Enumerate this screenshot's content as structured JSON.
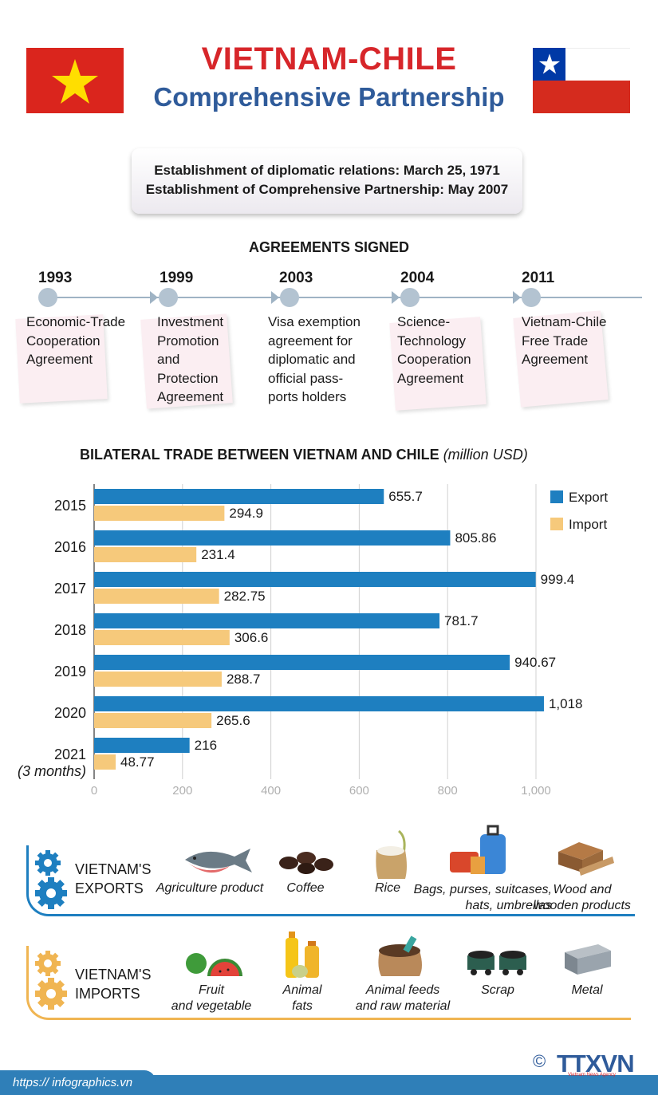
{
  "header": {
    "title": "VIETNAM-CHILE",
    "subtitle": "Comprehensive Partnership"
  },
  "info": {
    "line1": "Establishment of diplomatic relations: March 25, 1971",
    "line2": "Establishment of Comprehensive Partnership: May 2007"
  },
  "agreements": {
    "title": "AGREEMENTS SIGNED",
    "items": [
      {
        "year": "1993",
        "lines": [
          "Economic-Trade",
          "Cooperation",
          "Agreement"
        ]
      },
      {
        "year": "1999",
        "lines": [
          "Investment",
          "Promotion",
          "and",
          "Protection",
          "Agreement"
        ]
      },
      {
        "year": "2003",
        "lines": [
          "Visa exemption",
          "agreement for",
          "diplomatic and",
          "official pass-",
          "ports holders"
        ]
      },
      {
        "year": "2004",
        "lines": [
          "Science-",
          "Technology",
          "Cooperation",
          "Agreement"
        ]
      },
      {
        "year": "2011",
        "lines": [
          "Vietnam-Chile",
          "Free Trade",
          "Agreement"
        ]
      }
    ]
  },
  "chart_data": {
    "type": "bar",
    "orientation": "horizontal",
    "title": "BILATERAL TRADE BETWEEN VIETNAM AND CHILE",
    "unit": "(million USD)",
    "categories": [
      "2015",
      "2016",
      "2017",
      "2018",
      "2019",
      "2020",
      "2021"
    ],
    "category_notes": [
      "",
      "",
      "",
      "",
      "",
      "",
      "(3 months)"
    ],
    "series": [
      {
        "name": "Export",
        "color": "#1e7fc0",
        "values": [
          655.7,
          805.86,
          999.4,
          781.7,
          940.67,
          1018,
          216
        ],
        "labels": [
          "655.7",
          "805.86",
          "999.4",
          "781.7",
          "940.67",
          "1,018",
          "216"
        ]
      },
      {
        "name": "Import",
        "color": "#f6c97b",
        "values": [
          294.9,
          231.4,
          282.75,
          306.6,
          288.7,
          265.6,
          48.77
        ],
        "labels": [
          "294.9",
          "231.4",
          "282.75",
          "306.6",
          "288.7",
          "265.6",
          "48.77"
        ]
      }
    ],
    "xlim": [
      0,
      1000
    ],
    "xticks": [
      0,
      200,
      400,
      600,
      800,
      1000
    ],
    "xtick_labels": [
      "0",
      "200",
      "400",
      "600",
      "800",
      "1,000"
    ],
    "grid": true,
    "legend": "top-right"
  },
  "exports": {
    "label_line1": "VIETNAM'S",
    "label_line2": "EXPORTS",
    "color": "#1e7fc0",
    "items": [
      {
        "icon": "fish-icon",
        "lines": [
          "Agriculture product"
        ]
      },
      {
        "icon": "coffee-beans-icon",
        "lines": [
          "Coffee"
        ]
      },
      {
        "icon": "rice-sack-icon",
        "lines": [
          "Rice"
        ]
      },
      {
        "icon": "bags-suitcase-icon",
        "lines": [
          "Bags, purses, suitcases,",
          "hats, umbrellas"
        ]
      },
      {
        "icon": "wood-planks-icon",
        "lines": [
          "Wood and",
          "wooden products"
        ]
      }
    ]
  },
  "imports": {
    "label_line1": "VIETNAM'S",
    "label_line2": "IMPORTS",
    "color": "#f0b552",
    "items": [
      {
        "icon": "fruit-vegetable-icon",
        "lines": [
          "Fruit",
          "and vegetable"
        ]
      },
      {
        "icon": "oil-bottles-icon",
        "lines": [
          "Animal",
          "fats"
        ]
      },
      {
        "icon": "feed-sack-icon",
        "lines": [
          "Animal feeds",
          "and raw material"
        ]
      },
      {
        "icon": "scrap-carts-icon",
        "lines": [
          "Scrap"
        ]
      },
      {
        "icon": "metal-beam-icon",
        "lines": [
          "Metal"
        ]
      }
    ]
  },
  "footer": {
    "url": "https:// infographics.vn",
    "copyright": "©",
    "logo": "TTXVN",
    "logo_sub": "Vietnam News Agency"
  }
}
